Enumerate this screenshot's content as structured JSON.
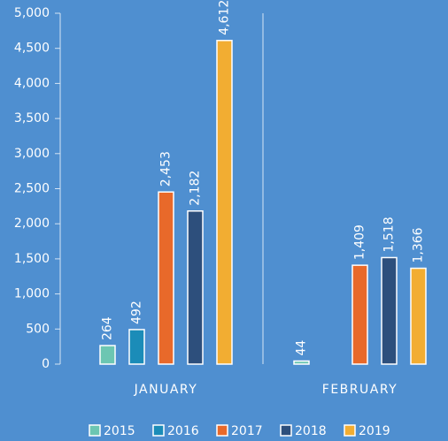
{
  "chart_data": {
    "type": "bar",
    "categories": [
      "JANUARY",
      "FEBRUARY"
    ],
    "series": [
      {
        "name": "2015",
        "color": "#6cc6b2",
        "values": [
          264,
          44
        ],
        "value_labels": [
          "264",
          "44"
        ]
      },
      {
        "name": "2016",
        "color": "#1b8cb8",
        "values": [
          492,
          null
        ],
        "value_labels": [
          "492",
          null
        ]
      },
      {
        "name": "2017",
        "color": "#e8692a",
        "values": [
          2453,
          1409
        ],
        "value_labels": [
          "2,453",
          "1,409"
        ]
      },
      {
        "name": "2018",
        "color": "#2d4f7c",
        "values": [
          2182,
          1518
        ],
        "value_labels": [
          "2,182",
          "1,518"
        ]
      },
      {
        "name": "2019",
        "color": "#f2ad32",
        "values": [
          4612,
          1366
        ],
        "value_labels": [
          "4,612",
          "1,366"
        ]
      }
    ],
    "ylim": [
      0,
      5000
    ],
    "yticks": [
      0,
      500,
      {
        "value": 1000,
        "label": "1,000"
      },
      {
        "value": 1500,
        "label": "1,500"
      },
      {
        "value": 2000,
        "label": "2,000"
      },
      {
        "value": 2500,
        "label": "2,500"
      },
      {
        "value": 3000,
        "label": "3,000"
      },
      {
        "value": 3500,
        "label": "3,500"
      },
      {
        "value": 4000,
        "label": "4,000"
      },
      {
        "value": 4500,
        "label": "4,500"
      },
      {
        "value": 5000,
        "label": "5,000"
      }
    ],
    "grid": false,
    "legend": "bottom"
  }
}
